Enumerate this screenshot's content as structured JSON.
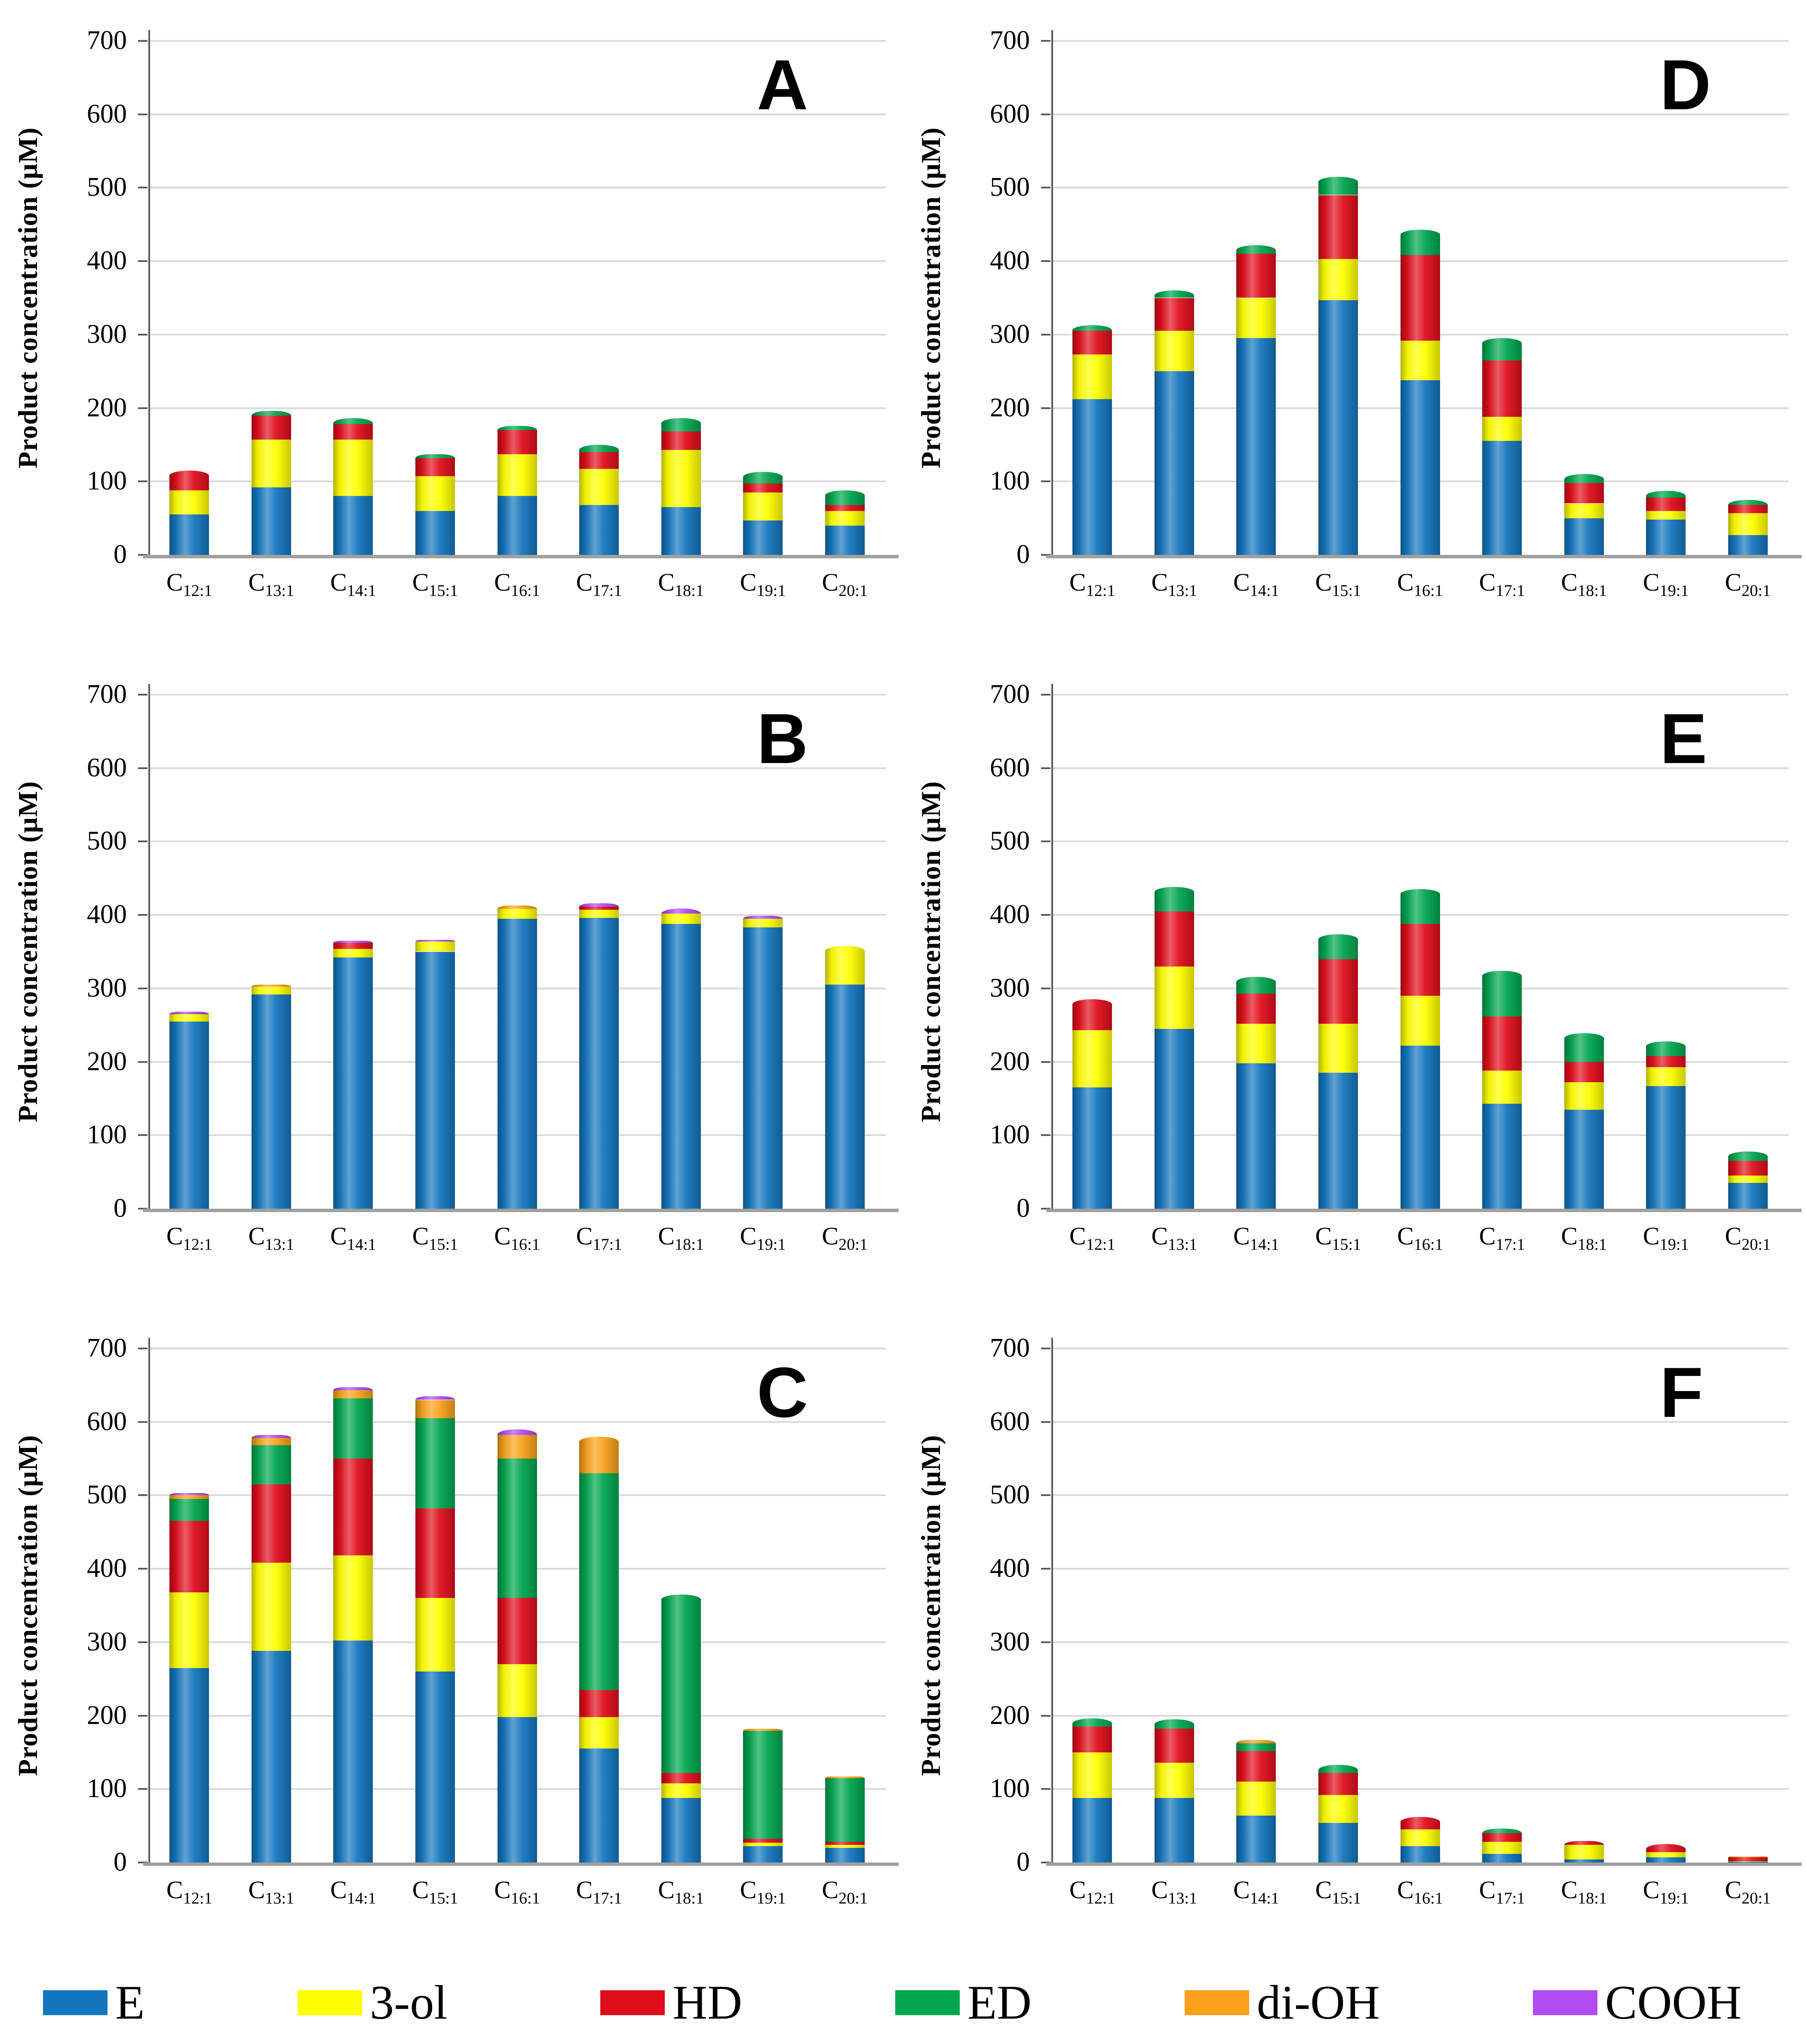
{
  "figure": {
    "y_axis_title": "Product concentration (μM)",
    "y_ticks": [
      0,
      100,
      200,
      300,
      400,
      500,
      600,
      700
    ],
    "y_max": 700,
    "category_prefix": "C",
    "category_subs": [
      "12:1",
      "13:1",
      "14:1",
      "15:1",
      "16:1",
      "17:1",
      "18:1",
      "19:1",
      "20:1"
    ]
  },
  "legend": {
    "items": [
      {
        "label": "E",
        "color": "#1476BE"
      },
      {
        "label": "3-ol",
        "color": "#FFFF00"
      },
      {
        "label": "HD",
        "color": "#E00E1C"
      },
      {
        "label": "ED",
        "color": "#00A64F"
      },
      {
        "label": "di-OH",
        "color": "#F9A11B"
      },
      {
        "label": "COOH",
        "color": "#B14CF2"
      }
    ]
  },
  "chart_data": [
    {
      "type": "bar",
      "stacked": true,
      "panel": "A",
      "categories": [
        "C12:1",
        "C13:1",
        "C14:1",
        "C15:1",
        "C16:1",
        "C17:1",
        "C18:1",
        "C19:1",
        "C20:1"
      ],
      "ylabel": "Product concentration (μM)",
      "ylim": [
        0,
        700
      ],
      "grid": true,
      "series": [
        {
          "name": "E",
          "values": [
            55,
            92,
            80,
            60,
            80,
            68,
            65,
            47,
            40
          ]
        },
        {
          "name": "3-ol",
          "values": [
            33,
            65,
            77,
            47,
            57,
            49,
            78,
            38,
            20
          ]
        },
        {
          "name": "HD",
          "values": [
            27,
            33,
            21,
            25,
            33,
            23,
            25,
            12,
            8
          ]
        },
        {
          "name": "ED",
          "values": [
            0,
            6,
            8,
            5,
            6,
            10,
            18,
            16,
            20
          ]
        },
        {
          "name": "di-OH",
          "values": [
            0,
            0,
            0,
            0,
            0,
            0,
            0,
            0,
            0
          ]
        },
        {
          "name": "COOH",
          "values": [
            0,
            0,
            0,
            0,
            0,
            0,
            0,
            0,
            0
          ]
        }
      ]
    },
    {
      "type": "bar",
      "stacked": true,
      "panel": "D",
      "categories": [
        "C12:1",
        "C13:1",
        "C14:1",
        "C15:1",
        "C16:1",
        "C17:1",
        "C18:1",
        "C19:1",
        "C20:1"
      ],
      "ylabel": "Product concentration (μM)",
      "ylim": [
        0,
        700
      ],
      "grid": true,
      "series": [
        {
          "name": "E",
          "values": [
            212,
            250,
            295,
            347,
            238,
            155,
            50,
            48,
            27
          ]
        },
        {
          "name": "3-ol",
          "values": [
            61,
            55,
            55,
            56,
            54,
            33,
            20,
            12,
            30
          ]
        },
        {
          "name": "HD",
          "values": [
            32,
            45,
            60,
            87,
            116,
            77,
            28,
            18,
            11
          ]
        },
        {
          "name": "ED",
          "values": [
            8,
            10,
            12,
            25,
            35,
            30,
            12,
            9,
            7
          ]
        },
        {
          "name": "di-OH",
          "values": [
            0,
            0,
            0,
            0,
            0,
            0,
            0,
            0,
            0
          ]
        },
        {
          "name": "COOH",
          "values": [
            0,
            0,
            0,
            0,
            0,
            0,
            0,
            0,
            0
          ]
        }
      ]
    },
    {
      "type": "bar",
      "stacked": true,
      "panel": "B",
      "categories": [
        "C12:1",
        "C13:1",
        "C14:1",
        "C15:1",
        "C16:1",
        "C17:1",
        "C18:1",
        "C19:1",
        "C20:1"
      ],
      "ylabel": "Product concentration (μM)",
      "ylim": [
        0,
        700
      ],
      "grid": true,
      "series": [
        {
          "name": "E",
          "values": [
            255,
            292,
            342,
            350,
            395,
            396,
            388,
            383,
            305
          ]
        },
        {
          "name": "3-ol",
          "values": [
            10,
            10,
            12,
            14,
            13,
            11,
            14,
            12,
            53
          ]
        },
        {
          "name": "HD",
          "values": [
            0,
            0,
            8,
            0,
            0,
            4,
            0,
            0,
            0
          ]
        },
        {
          "name": "ED",
          "values": [
            0,
            0,
            0,
            0,
            0,
            0,
            0,
            0,
            0
          ]
        },
        {
          "name": "di-OH",
          "values": [
            0,
            3,
            0,
            0,
            5,
            0,
            0,
            0,
            0
          ]
        },
        {
          "name": "COOH",
          "values": [
            3,
            0,
            3,
            2,
            0,
            5,
            7,
            4,
            0
          ]
        }
      ]
    },
    {
      "type": "bar",
      "stacked": true,
      "panel": "E",
      "categories": [
        "C12:1",
        "C13:1",
        "C14:1",
        "C15:1",
        "C16:1",
        "C17:1",
        "C18:1",
        "C19:1",
        "C20:1"
      ],
      "ylabel": "Product concentration (μM)",
      "ylim": [
        0,
        700
      ],
      "grid": true,
      "series": [
        {
          "name": "E",
          "values": [
            165,
            245,
            198,
            185,
            222,
            143,
            135,
            167,
            35
          ]
        },
        {
          "name": "3-ol",
          "values": [
            78,
            85,
            54,
            67,
            68,
            45,
            37,
            26,
            10
          ]
        },
        {
          "name": "HD",
          "values": [
            42,
            75,
            41,
            88,
            98,
            74,
            28,
            15,
            20
          ]
        },
        {
          "name": "ED",
          "values": [
            0,
            33,
            23,
            34,
            47,
            62,
            39,
            20,
            13
          ]
        },
        {
          "name": "di-OH",
          "values": [
            0,
            0,
            0,
            0,
            0,
            0,
            0,
            0,
            0
          ]
        },
        {
          "name": "COOH",
          "values": [
            0,
            0,
            0,
            0,
            0,
            0,
            0,
            0,
            0
          ]
        }
      ]
    },
    {
      "type": "bar",
      "stacked": true,
      "panel": "C",
      "categories": [
        "C12:1",
        "C13:1",
        "C14:1",
        "C15:1",
        "C16:1",
        "C17:1",
        "C18:1",
        "C19:1",
        "C20:1"
      ],
      "ylabel": "Product concentration (μM)",
      "ylim": [
        0,
        700
      ],
      "grid": true,
      "series": [
        {
          "name": "E",
          "values": [
            265,
            288,
            302,
            260,
            198,
            155,
            88,
            22,
            20
          ]
        },
        {
          "name": "3-ol",
          "values": [
            103,
            120,
            116,
            100,
            72,
            43,
            20,
            5,
            4
          ]
        },
        {
          "name": "HD",
          "values": [
            97,
            107,
            132,
            122,
            90,
            37,
            14,
            5,
            4
          ]
        },
        {
          "name": "ED",
          "values": [
            30,
            53,
            82,
            123,
            190,
            295,
            243,
            147,
            87
          ]
        },
        {
          "name": "di-OH",
          "values": [
            5,
            10,
            11,
            25,
            32,
            50,
            0,
            3,
            2
          ]
        },
        {
          "name": "COOH",
          "values": [
            3,
            4,
            4,
            5,
            8,
            0,
            0,
            0,
            0
          ]
        }
      ]
    },
    {
      "type": "bar",
      "stacked": true,
      "panel": "F",
      "categories": [
        "C12:1",
        "C13:1",
        "C14:1",
        "C15:1",
        "C16:1",
        "C17:1",
        "C18:1",
        "C19:1",
        "C20:1"
      ],
      "ylabel": "Product concentration (μM)",
      "ylim": [
        0,
        700
      ],
      "grid": true,
      "series": [
        {
          "name": "E",
          "values": [
            88,
            88,
            64,
            54,
            22,
            12,
            4,
            7,
            1
          ]
        },
        {
          "name": "3-ol",
          "values": [
            62,
            48,
            46,
            38,
            23,
            16,
            20,
            7,
            1
          ]
        },
        {
          "name": "HD",
          "values": [
            35,
            46,
            42,
            30,
            17,
            12,
            5,
            11,
            5
          ]
        },
        {
          "name": "ED",
          "values": [
            11,
            13,
            10,
            11,
            0,
            6,
            0,
            0,
            0
          ]
        },
        {
          "name": "di-OH",
          "values": [
            0,
            0,
            5,
            0,
            0,
            0,
            0,
            0,
            1
          ]
        },
        {
          "name": "COOH",
          "values": [
            0,
            0,
            0,
            0,
            0,
            0,
            0,
            0,
            0
          ]
        }
      ]
    }
  ]
}
